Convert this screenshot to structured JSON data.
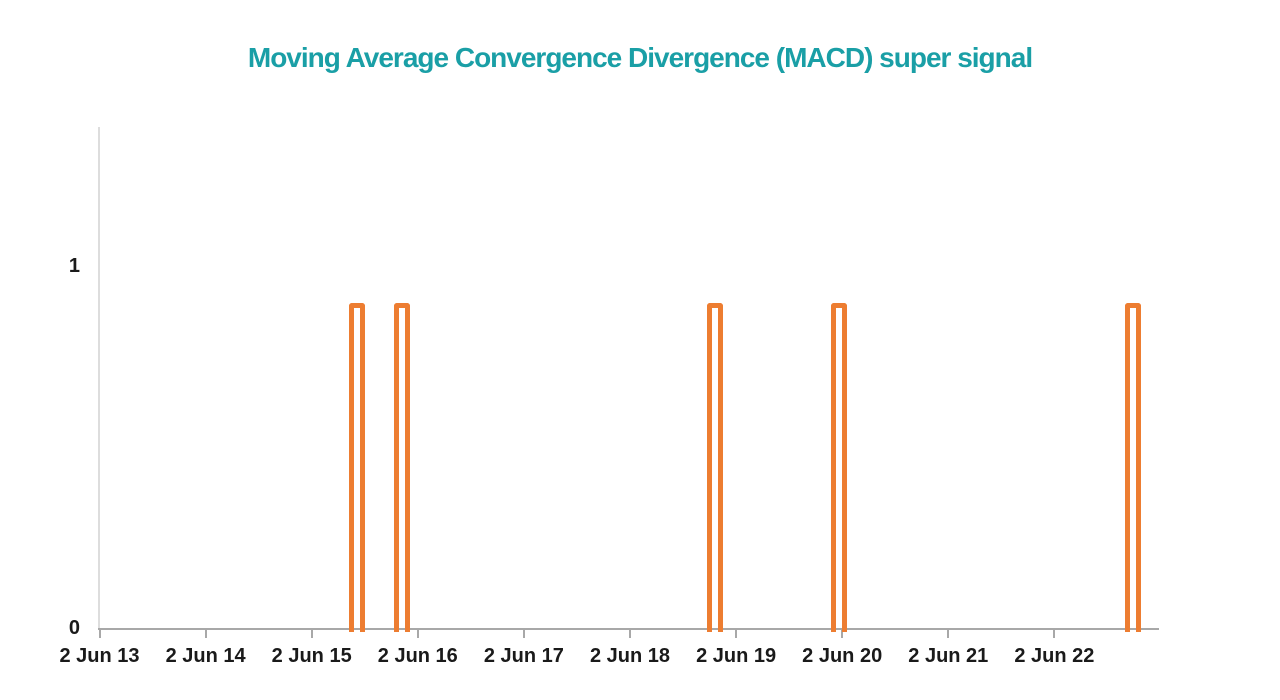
{
  "header": {
    "title": "Moving Average Convergence Divergence (MACD) super signal"
  },
  "colors": {
    "title": "#1A9FA6",
    "signal": "#ED7D31",
    "x_axis_line": "#A8A8A8",
    "y_axis_line": "#DDDDDD",
    "tick_label": "#1A1A1A",
    "background": "#FFFFFF"
  },
  "chart_data": {
    "type": "line",
    "subtype": "binary square-pulse signal",
    "title": "Moving Average Convergence Divergence (MACD) super signal",
    "x_axis": {
      "tick_labels": [
        "2 Jun 13",
        "2 Jun 14",
        "2 Jun 15",
        "2 Jun 16",
        "2 Jun 17",
        "2 Jun 18",
        "2 Jun 19",
        "2 Jun 20",
        "2 Jun 21",
        "2 Jun 22"
      ],
      "tick_interval": "1 year",
      "axis_extends_units_past_last_tick": 1.0
    },
    "y_axis": {
      "tick_labels": [
        "0",
        "1"
      ],
      "tick_values": [
        0,
        1
      ],
      "ylim": [
        0,
        1.4
      ]
    },
    "grid": "off",
    "legend": "none",
    "baseline_value": 0,
    "pulses": {
      "value": 0.9,
      "width_units": 0.15,
      "centers_units_from_first_tick": [
        2.43,
        2.85,
        5.8,
        6.97,
        9.74
      ]
    }
  }
}
